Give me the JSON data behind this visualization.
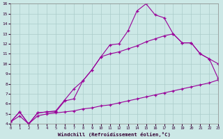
{
  "xlabel": "Windchill (Refroidissement éolien,°C)",
  "xlim": [
    0,
    23
  ],
  "ylim": [
    4,
    16
  ],
  "xticks": [
    0,
    1,
    2,
    3,
    4,
    5,
    6,
    7,
    8,
    9,
    10,
    11,
    12,
    13,
    14,
    15,
    16,
    17,
    18,
    19,
    20,
    21,
    22,
    23
  ],
  "yticks": [
    4,
    5,
    6,
    7,
    8,
    9,
    10,
    11,
    12,
    13,
    14,
    15,
    16
  ],
  "bg_color": "#cce8e6",
  "line_color": "#990099",
  "grid_color": "#aaccca",
  "line1_x": [
    0,
    1,
    2,
    3,
    4,
    5,
    6,
    7,
    8,
    9,
    10,
    11,
    12,
    13,
    14,
    15,
    16,
    17,
    18,
    19,
    20,
    21,
    22,
    23
  ],
  "line1_y": [
    4.2,
    5.2,
    4.0,
    5.1,
    5.2,
    5.2,
    6.3,
    6.5,
    8.3,
    9.4,
    10.7,
    11.9,
    12.0,
    13.3,
    15.3,
    16.0,
    14.9,
    14.6,
    13.0,
    12.1,
    12.1,
    11.0,
    10.5,
    8.5
  ],
  "line2_x": [
    0,
    1,
    2,
    3,
    4,
    5,
    6,
    7,
    8,
    9,
    10,
    11,
    12,
    13,
    14,
    15,
    16,
    17,
    18,
    19,
    20,
    21,
    22,
    23
  ],
  "line2_y": [
    4.2,
    5.2,
    4.0,
    5.1,
    5.2,
    5.3,
    6.4,
    7.5,
    8.3,
    9.4,
    10.7,
    11.0,
    11.2,
    11.5,
    11.8,
    12.2,
    12.5,
    12.8,
    13.0,
    12.1,
    12.1,
    11.0,
    10.5,
    10.0
  ],
  "line3_x": [
    0,
    1,
    2,
    3,
    4,
    5,
    6,
    7,
    8,
    9,
    10,
    11,
    12,
    13,
    14,
    15,
    16,
    17,
    18,
    19,
    20,
    21,
    22,
    23
  ],
  "line3_y": [
    4.2,
    4.8,
    4.0,
    4.8,
    5.0,
    5.1,
    5.2,
    5.3,
    5.5,
    5.6,
    5.8,
    5.9,
    6.1,
    6.3,
    6.5,
    6.7,
    6.9,
    7.1,
    7.3,
    7.5,
    7.7,
    7.9,
    8.1,
    8.4
  ]
}
